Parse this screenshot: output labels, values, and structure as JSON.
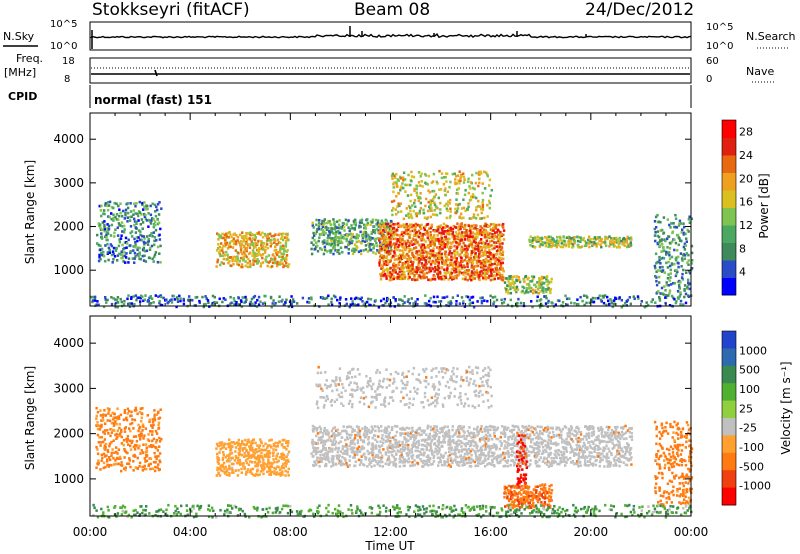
{
  "header": {
    "station": "Stokkseyri (fitACF)",
    "beam": "Beam 08",
    "date": "24/Dec/2012"
  },
  "nsky_panel": {
    "left_label": "N.Sky",
    "left_ticks": [
      "10^5",
      "10^0"
    ],
    "right_label": "N.Search",
    "right_ticks": [
      "10^5",
      "10^0"
    ]
  },
  "freq_panel": {
    "left_label_line1": "Freq.",
    "left_label_line2": "[MHz]",
    "left_ticks": [
      "18",
      "8"
    ],
    "right_label": "Nave",
    "right_ticks": [
      "60",
      "0"
    ]
  },
  "cpid_panel": {
    "label": "CPID",
    "text": "normal (fast) 151"
  },
  "colors": {
    "power_scale": [
      "#0000ff",
      "#2b4cc8",
      "#3e8a5a",
      "#4aa860",
      "#7fc450",
      "#d9c020",
      "#f0a020",
      "#e86a10",
      "#e02010",
      "#ff0000"
    ],
    "velocity_scale": [
      "#2244cc",
      "#2e6ab0",
      "#3a8a50",
      "#50b030",
      "#90d040",
      "#c0c0c0",
      "#ffa030",
      "#ff7a10",
      "#f04010",
      "#ff0000"
    ],
    "ground_scatter": "#c0c0c0"
  },
  "chart_data": [
    {
      "type": "heatmap",
      "panel": "power",
      "xlabel": "",
      "ylabel": "Slant Range [km]",
      "yticks": [
        "1000",
        "2000",
        "3000",
        "4000"
      ],
      "ylim": [
        180,
        4600
      ],
      "colorbar_label": "Power [dB]",
      "colorbar_ticks": [
        "4",
        "8",
        "12",
        "16",
        "20",
        "24",
        "28"
      ],
      "colorbar_range": [
        0,
        30
      ],
      "regions": [
        {
          "t0": 0.2,
          "t1": 2.8,
          "r0": 1200,
          "r1": 2600,
          "level": 8,
          "density": 0.35
        },
        {
          "t0": 5.0,
          "t1": 7.9,
          "r0": 1100,
          "r1": 1900,
          "level": 18,
          "density": 0.55
        },
        {
          "t0": 8.8,
          "t1": 12.0,
          "r0": 1400,
          "r1": 2200,
          "level": 10,
          "density": 0.5
        },
        {
          "t0": 11.5,
          "t1": 16.5,
          "r0": 800,
          "r1": 2100,
          "level": 22,
          "density": 0.7
        },
        {
          "t0": 12.0,
          "t1": 16.0,
          "r0": 2200,
          "r1": 3300,
          "level": 16,
          "density": 0.25
        },
        {
          "t0": 16.5,
          "t1": 18.4,
          "r0": 500,
          "r1": 900,
          "level": 13,
          "density": 0.65
        },
        {
          "t0": 17.5,
          "t1": 21.6,
          "r0": 1550,
          "r1": 1800,
          "level": 14,
          "density": 0.7
        },
        {
          "t0": 22.5,
          "t1": 24.0,
          "r0": 400,
          "r1": 2300,
          "level": 9,
          "density": 0.3
        },
        {
          "t0": 0.0,
          "t1": 24.0,
          "r0": 180,
          "r1": 450,
          "level": 6,
          "density": 0.25
        }
      ]
    },
    {
      "type": "heatmap",
      "panel": "velocity",
      "xlabel": "Time UT",
      "xticks": [
        "00:00",
        "04:00",
        "08:00",
        "12:00",
        "16:00",
        "20:00",
        "00:00"
      ],
      "xlim": [
        0,
        24
      ],
      "ylabel": "Slant Range [km]",
      "yticks": [
        "1000",
        "2000",
        "3000",
        "4000"
      ],
      "ylim": [
        180,
        4600
      ],
      "colorbar_label": "Velocity [m s⁻¹]",
      "colorbar_ticks": [
        "1000",
        "500",
        "100",
        "25",
        "-25",
        "-100",
        "-500",
        "-1000"
      ],
      "regions": [
        {
          "t0": 0.2,
          "t1": 2.8,
          "r0": 1200,
          "r1": 2600,
          "velocity": -150,
          "density": 0.35
        },
        {
          "t0": 5.0,
          "t1": 7.9,
          "r0": 1100,
          "r1": 1900,
          "velocity": -60,
          "density": 0.55
        },
        {
          "t0": 8.8,
          "t1": 21.6,
          "r0": 1300,
          "r1": 2200,
          "velocity": 0,
          "density": 0.55
        },
        {
          "t0": 9.0,
          "t1": 16.0,
          "r0": 2600,
          "r1": 3500,
          "velocity": 0,
          "density": 0.2
        },
        {
          "t0": 16.5,
          "t1": 18.4,
          "r0": 380,
          "r1": 900,
          "velocity": -400,
          "density": 0.7
        },
        {
          "t0": 17.0,
          "t1": 17.4,
          "r0": 900,
          "r1": 2000,
          "velocity": -1000,
          "density": 0.5
        },
        {
          "t0": 22.5,
          "t1": 24.0,
          "r0": 400,
          "r1": 2300,
          "velocity": -200,
          "density": 0.3
        },
        {
          "t0": 0.0,
          "t1": 24.0,
          "r0": 180,
          "r1": 450,
          "velocity": 50,
          "density": 0.25
        }
      ]
    }
  ]
}
